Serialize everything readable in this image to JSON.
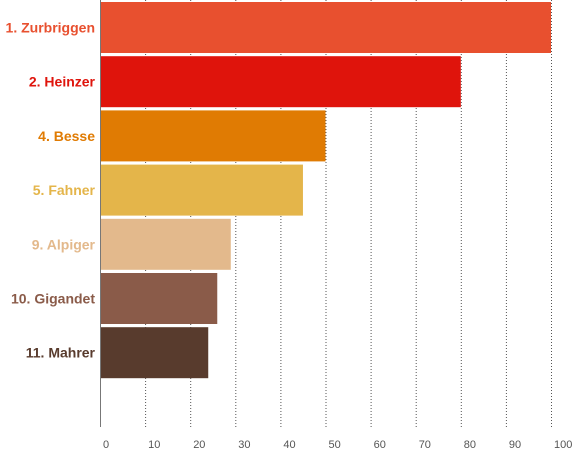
{
  "chart_data": {
    "type": "bar",
    "orientation": "horizontal",
    "categories": [
      "1. Zurbriggen",
      "2. Heinzer",
      "4. Besse",
      "5. Fahner",
      "9. Alpiger",
      "10. Gigandet",
      "11. Mahrer"
    ],
    "values": [
      100,
      80,
      50,
      45,
      29,
      26,
      24
    ],
    "colors": [
      "#e8502f",
      "#df140c",
      "#e07b03",
      "#e4b54a",
      "#e3b98c",
      "#8a5b49",
      "#583b2d"
    ],
    "xlim": [
      0,
      100
    ],
    "xticks": [
      0,
      10,
      20,
      30,
      40,
      50,
      60,
      70,
      80,
      90,
      100
    ],
    "grid": true,
    "title": "",
    "xlabel": "",
    "ylabel": ""
  }
}
